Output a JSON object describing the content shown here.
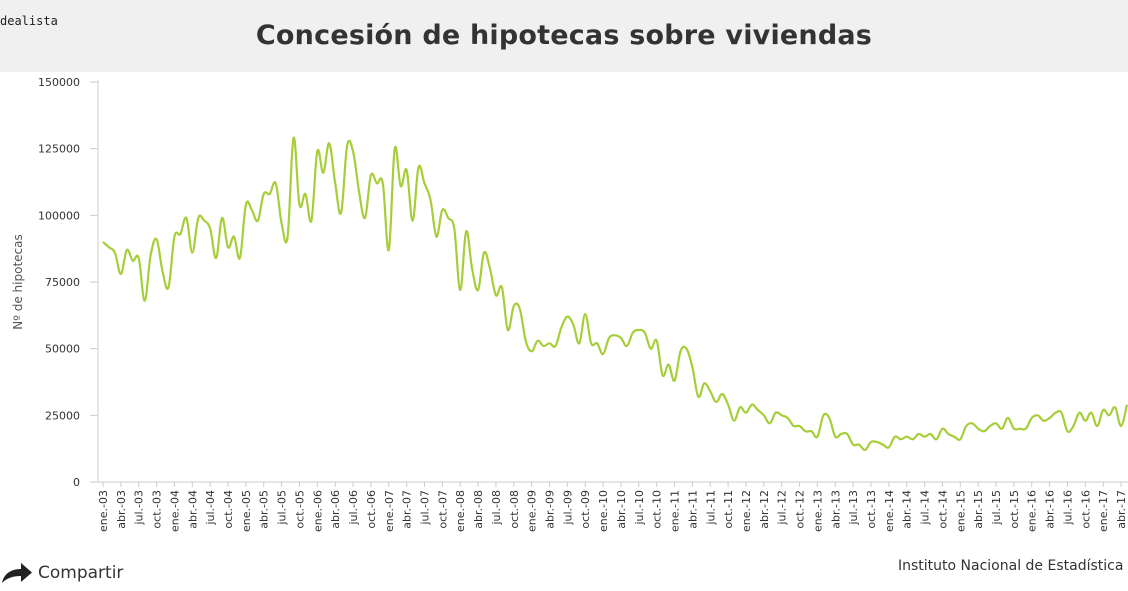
{
  "brand": "dealista",
  "title": "Concesión de hipotecas sobre viviendas",
  "share_label": "Compartir",
  "source": "Instituto Nacional de Estadística",
  "colors": {
    "line": "#a6ce39",
    "axis": "#ccc",
    "text": "#333",
    "header_bg": "#f0f0f0"
  },
  "chart_data": {
    "type": "line",
    "title": "Concesión de hipotecas sobre viviendas",
    "xlabel": "",
    "ylabel": "Nº de hipotecas",
    "ylim": [
      0,
      150000
    ],
    "yticks": [
      0,
      25000,
      50000,
      75000,
      100000,
      125000,
      150000
    ],
    "grid": false,
    "categories": [
      "ene.-03",
      "feb.-03",
      "mar.-03",
      "abr.-03",
      "may.-03",
      "jun.-03",
      "jul.-03",
      "ago.-03",
      "sep.-03",
      "oct.-03",
      "nov.-03",
      "dic.-03",
      "ene.-04",
      "feb.-04",
      "mar.-04",
      "abr.-04",
      "may.-04",
      "jun.-04",
      "jul.-04",
      "ago.-04",
      "sep.-04",
      "oct.-04",
      "nov.-04",
      "dic.-04",
      "ene.-05",
      "feb.-05",
      "mar.-05",
      "abr.-05",
      "may.-05",
      "jun.-05",
      "jul.-05",
      "ago.-05",
      "sep.-05",
      "oct.-05",
      "nov.-05",
      "dic.-05",
      "ene.-06",
      "feb.-06",
      "mar.-06",
      "abr.-06",
      "may.-06",
      "jun.-06",
      "jul.-06",
      "ago.-06",
      "sep.-06",
      "oct.-06",
      "nov.-06",
      "dic.-06",
      "ene.-07",
      "feb.-07",
      "mar.-07",
      "abr.-07",
      "may.-07",
      "jun.-07",
      "jul.-07",
      "ago.-07",
      "sep.-07",
      "oct.-07",
      "nov.-07",
      "dic.-07",
      "ene.-08",
      "feb.-08",
      "mar.-08",
      "abr.-08",
      "may.-08",
      "jun.-08",
      "jul.-08",
      "ago.-08",
      "sep.-08",
      "oct.-08",
      "nov.-08",
      "dic.-08",
      "ene.-09",
      "feb.-09",
      "mar.-09",
      "abr.-09",
      "may.-09",
      "jun.-09",
      "jul.-09",
      "ago.-09",
      "sep.-09",
      "oct.-09",
      "nov.-09",
      "dic.-09",
      "ene.-10",
      "feb.-10",
      "mar.-10",
      "abr.-10",
      "may.-10",
      "jun.-10",
      "jul.-10",
      "ago.-10",
      "sep.-10",
      "oct.-10",
      "nov.-10",
      "dic.-10",
      "ene.-11",
      "feb.-11",
      "mar.-11",
      "abr.-11",
      "may.-11",
      "jun.-11",
      "jul.-11",
      "ago.-11",
      "sep.-11",
      "oct.-11",
      "nov.-11",
      "dic.-11",
      "ene.-12",
      "feb.-12",
      "mar.-12",
      "abr.-12",
      "may.-12",
      "jun.-12",
      "jul.-12",
      "ago.-12",
      "sep.-12",
      "oct.-12",
      "nov.-12",
      "dic.-12",
      "ene.-13",
      "feb.-13",
      "mar.-13",
      "abr.-13",
      "may.-13",
      "jun.-13",
      "jul.-13",
      "ago.-13",
      "sep.-13",
      "oct.-13",
      "nov.-13",
      "dic.-13",
      "ene.-14",
      "feb.-14",
      "mar.-14",
      "abr.-14",
      "may.-14",
      "jun.-14",
      "jul.-14",
      "ago.-14",
      "sep.-14",
      "oct.-14",
      "nov.-14",
      "dic.-14",
      "ene.-15",
      "feb.-15",
      "mar.-15",
      "abr.-15",
      "may.-15",
      "jun.-15",
      "jul.-15",
      "ago.-15",
      "sep.-15",
      "oct.-15",
      "nov.-15",
      "dic.-15",
      "ene.-16",
      "feb.-16",
      "mar.-16",
      "abr.-16",
      "may.-16",
      "jun.-16",
      "jul.-16",
      "ago.-16",
      "sep.-16",
      "oct.-16",
      "nov.-16",
      "dic.-16",
      "ene.-17",
      "feb.-17",
      "mar.-17",
      "abr.-17",
      "may.-17"
    ],
    "visible_tick_labels": [
      "ene.-03",
      "abr.-03",
      "jul.-03",
      "oct.-03",
      "ene.-04",
      "abr.-04",
      "jul.-04",
      "oct.-04",
      "ene.-05",
      "abr.-05",
      "jul.-05",
      "oct.-05",
      "ene.-06",
      "abr.-06",
      "jul.-06",
      "oct.-06",
      "ene.-07",
      "abr.-07",
      "jul.-07",
      "oct.-07",
      "ene.-08",
      "abr.-08",
      "jul.-08",
      "oct.-08",
      "ene.-09",
      "abr.-09",
      "jul.-09",
      "oct.-09",
      "ene.-10",
      "abr.-10",
      "jul.-10",
      "oct.-10",
      "ene.-11",
      "abr.-11",
      "jul.-11",
      "oct.-11",
      "ene.-12",
      "abr.-12",
      "jul.-12",
      "oct.-12",
      "ene.-13",
      "abr.-13",
      "jul.-13",
      "oct.-13",
      "ene.-14",
      "abr.-14",
      "jul.-14",
      "oct.-14",
      "ene.-15",
      "abr.-15",
      "jul.-15",
      "oct.-15",
      "ene.-16",
      "abr.-16",
      "jul.-16",
      "oct.-16",
      "ene.-17",
      "abr.-17"
    ],
    "series": [
      {
        "values": [
          90000,
          88000,
          86000,
          78000,
          87000,
          83000,
          84000,
          68000,
          85000,
          91000,
          79000,
          73000,
          92000,
          93000,
          99000,
          86000,
          99000,
          98000,
          95000,
          84000,
          99000,
          88000,
          92000,
          84000,
          104000,
          102000,
          98000,
          108000,
          108000,
          112000,
          97000,
          92000,
          129000,
          104000,
          108000,
          98000,
          124000,
          116000,
          127000,
          112000,
          101000,
          126000,
          124000,
          109000,
          99000,
          115000,
          112000,
          112000,
          87000,
          125000,
          111000,
          117000,
          98000,
          118000,
          112000,
          106000,
          92000,
          102000,
          99000,
          95000,
          72000,
          94000,
          80000,
          72000,
          86000,
          80000,
          70000,
          73000,
          57000,
          66000,
          65000,
          53000,
          49000,
          53000,
          51000,
          52000,
          51000,
          58000,
          62000,
          59000,
          52000,
          63000,
          52000,
          52000,
          48000,
          54000,
          55000,
          54000,
          51000,
          56000,
          57000,
          56000,
          50000,
          53000,
          40000,
          44000,
          38000,
          49000,
          50000,
          43000,
          32000,
          37000,
          34000,
          30000,
          33000,
          29000,
          23000,
          28000,
          26000,
          29000,
          27000,
          25000,
          22000,
          26000,
          25000,
          24000,
          21000,
          21000,
          19000,
          19000,
          17000,
          25000,
          24000,
          17000,
          18000,
          18000,
          14000,
          14000,
          12000,
          15000,
          15000,
          14000,
          13000,
          17000,
          16000,
          17000,
          16000,
          18000,
          17000,
          18000,
          16000,
          20000,
          18000,
          17000,
          16000,
          21000,
          22000,
          20000,
          19000,
          21000,
          22000,
          20000,
          24000,
          20000,
          20000,
          20000,
          24000,
          25000,
          23000,
          24000,
          26000,
          26000,
          19000,
          21000,
          26000,
          23000,
          26000,
          21000,
          27000,
          25000,
          28000,
          21000,
          29000
        ]
      }
    ]
  }
}
